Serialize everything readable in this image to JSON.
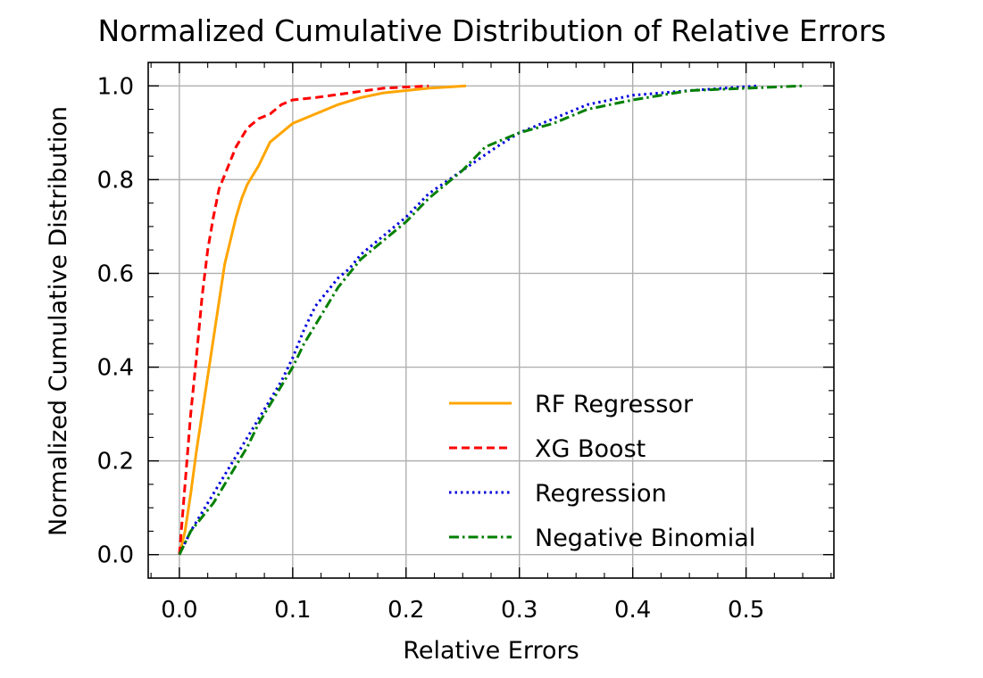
{
  "chart_data": {
    "type": "line",
    "title": "Normalized Cumulative Distribution of Relative Errors",
    "xlabel": "Relative Errors",
    "ylabel": "Normalized Cumulative Distribution",
    "xlim": [
      -0.0275,
      0.5775
    ],
    "ylim": [
      -0.05,
      1.05
    ],
    "xticks": [
      0.0,
      0.1,
      0.2,
      0.3,
      0.4,
      0.5
    ],
    "xtick_labels": [
      "0.0",
      "0.1",
      "0.2",
      "0.3",
      "0.4",
      "0.5"
    ],
    "yticks": [
      0.0,
      0.2,
      0.4,
      0.6,
      0.8,
      1.0
    ],
    "ytick_labels": [
      "0.0",
      "0.2",
      "0.4",
      "0.6",
      "0.8",
      "1.0"
    ],
    "grid": true,
    "legend_position": "lower-right",
    "series": [
      {
        "name": "RF Regressor",
        "color": "#FFA500",
        "linestyle": "solid",
        "points": [
          [
            0.0,
            0.0
          ],
          [
            0.005,
            0.05
          ],
          [
            0.01,
            0.13
          ],
          [
            0.015,
            0.22
          ],
          [
            0.02,
            0.3
          ],
          [
            0.025,
            0.38
          ],
          [
            0.03,
            0.46
          ],
          [
            0.035,
            0.54
          ],
          [
            0.04,
            0.62
          ],
          [
            0.045,
            0.67
          ],
          [
            0.05,
            0.72
          ],
          [
            0.055,
            0.76
          ],
          [
            0.06,
            0.79
          ],
          [
            0.07,
            0.83
          ],
          [
            0.08,
            0.88
          ],
          [
            0.09,
            0.9
          ],
          [
            0.1,
            0.92
          ],
          [
            0.12,
            0.94
          ],
          [
            0.14,
            0.96
          ],
          [
            0.16,
            0.975
          ],
          [
            0.18,
            0.985
          ],
          [
            0.2,
            0.99
          ],
          [
            0.22,
            0.995
          ],
          [
            0.253,
            1.0
          ]
        ]
      },
      {
        "name": "XG Boost",
        "color": "#FF0000",
        "linestyle": "dashed",
        "points": [
          [
            0.0,
            0.0
          ],
          [
            0.005,
            0.15
          ],
          [
            0.01,
            0.3
          ],
          [
            0.015,
            0.42
          ],
          [
            0.02,
            0.55
          ],
          [
            0.025,
            0.65
          ],
          [
            0.03,
            0.72
          ],
          [
            0.035,
            0.78
          ],
          [
            0.04,
            0.81
          ],
          [
            0.045,
            0.84
          ],
          [
            0.05,
            0.87
          ],
          [
            0.06,
            0.91
          ],
          [
            0.07,
            0.93
          ],
          [
            0.08,
            0.94
          ],
          [
            0.09,
            0.96
          ],
          [
            0.1,
            0.97
          ],
          [
            0.12,
            0.975
          ],
          [
            0.15,
            0.985
          ],
          [
            0.18,
            0.995
          ],
          [
            0.22,
            1.0
          ]
        ]
      },
      {
        "name": "Regression",
        "color": "#0000DD",
        "linestyle": "dotted",
        "points": [
          [
            0.0,
            0.0
          ],
          [
            0.01,
            0.05
          ],
          [
            0.02,
            0.09
          ],
          [
            0.03,
            0.13
          ],
          [
            0.04,
            0.17
          ],
          [
            0.05,
            0.21
          ],
          [
            0.06,
            0.25
          ],
          [
            0.07,
            0.29
          ],
          [
            0.08,
            0.33
          ],
          [
            0.09,
            0.37
          ],
          [
            0.1,
            0.42
          ],
          [
            0.11,
            0.48
          ],
          [
            0.12,
            0.53
          ],
          [
            0.13,
            0.56
          ],
          [
            0.14,
            0.59
          ],
          [
            0.15,
            0.61
          ],
          [
            0.16,
            0.64
          ],
          [
            0.18,
            0.68
          ],
          [
            0.2,
            0.72
          ],
          [
            0.22,
            0.77
          ],
          [
            0.25,
            0.82
          ],
          [
            0.28,
            0.87
          ],
          [
            0.3,
            0.9
          ],
          [
            0.33,
            0.93
          ],
          [
            0.36,
            0.96
          ],
          [
            0.4,
            0.98
          ],
          [
            0.45,
            0.99
          ],
          [
            0.51,
            1.0
          ]
        ]
      },
      {
        "name": "Negative Binomial",
        "color": "#007F00",
        "linestyle": "dashdot",
        "points": [
          [
            0.0,
            0.0
          ],
          [
            0.01,
            0.05
          ],
          [
            0.02,
            0.08
          ],
          [
            0.03,
            0.11
          ],
          [
            0.04,
            0.15
          ],
          [
            0.05,
            0.19
          ],
          [
            0.06,
            0.23
          ],
          [
            0.07,
            0.28
          ],
          [
            0.08,
            0.32
          ],
          [
            0.09,
            0.36
          ],
          [
            0.1,
            0.4
          ],
          [
            0.11,
            0.45
          ],
          [
            0.12,
            0.49
          ],
          [
            0.13,
            0.53
          ],
          [
            0.14,
            0.57
          ],
          [
            0.15,
            0.6
          ],
          [
            0.16,
            0.63
          ],
          [
            0.18,
            0.67
          ],
          [
            0.2,
            0.71
          ],
          [
            0.22,
            0.76
          ],
          [
            0.25,
            0.82
          ],
          [
            0.27,
            0.87
          ],
          [
            0.3,
            0.9
          ],
          [
            0.33,
            0.92
          ],
          [
            0.36,
            0.95
          ],
          [
            0.4,
            0.97
          ],
          [
            0.45,
            0.99
          ],
          [
            0.5,
            0.995
          ],
          [
            0.55,
            1.0
          ]
        ]
      }
    ]
  }
}
